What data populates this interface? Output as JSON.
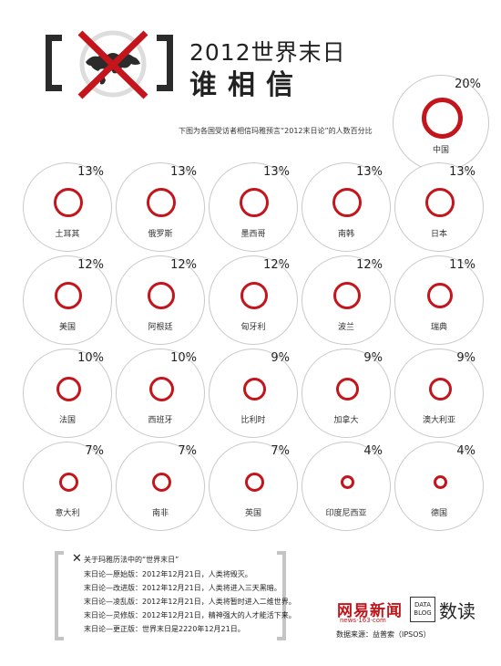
{
  "header": {
    "title_line1": "2012世界末日",
    "title_line2": "谁相信",
    "subtitle": "下图为各国受访者相信玛雅预言“2012末日论”的人数百分比"
  },
  "colors": {
    "accent": "#c3151b",
    "card_border": "#c9c9c9",
    "text": "#222222"
  },
  "icons": {
    "logo": "globe-crossed-icon",
    "notes": "x-mark-icon"
  },
  "chart_data": {
    "type": "bubble",
    "unit": "%",
    "categories": [
      "中国",
      "土耳其",
      "俄罗斯",
      "墨西哥",
      "南韩",
      "日本",
      "美国",
      "阿根廷",
      "匈牙利",
      "波兰",
      "瑞典",
      "法国",
      "西班牙",
      "比利时",
      "加拿大",
      "澳大利亚",
      "意大利",
      "南非",
      "英国",
      "印度尼西亚",
      "德国"
    ],
    "values": [
      20,
      13,
      13,
      13,
      13,
      13,
      12,
      12,
      12,
      12,
      11,
      10,
      10,
      9,
      9,
      9,
      7,
      7,
      7,
      4,
      4
    ],
    "labels": [
      "20%",
      "13%",
      "13%",
      "13%",
      "13%",
      "13%",
      "12%",
      "12%",
      "12%",
      "12%",
      "11%",
      "10%",
      "10%",
      "9%",
      "9%",
      "9%",
      "7%",
      "7%",
      "7%",
      "4%",
      "4%"
    ]
  },
  "notes": {
    "heading": "关于玛雅历法中的“世界末日”",
    "lines": [
      "末日论—原始版：2012年12月21日，人类将毁灭。",
      "末日论—改进版：2012年12月21日，人类将进入三天黑暗。",
      "末日论—凌乱版：2012年12月21日，人类将暂时进入二维世界。",
      "末日论—灵修版：2012年12月21日，精神强大的人才能活下来。",
      "末日论—更正版：世界末日是2220年12月21日。"
    ]
  },
  "footer": {
    "logo_netease": "网易新闻",
    "logo_netease_sub": "news·163·com",
    "logo_datablog_box": "DATA BLOG",
    "logo_datablog_text": "数读",
    "source": "数据来源：益普索（IPSOS）"
  }
}
